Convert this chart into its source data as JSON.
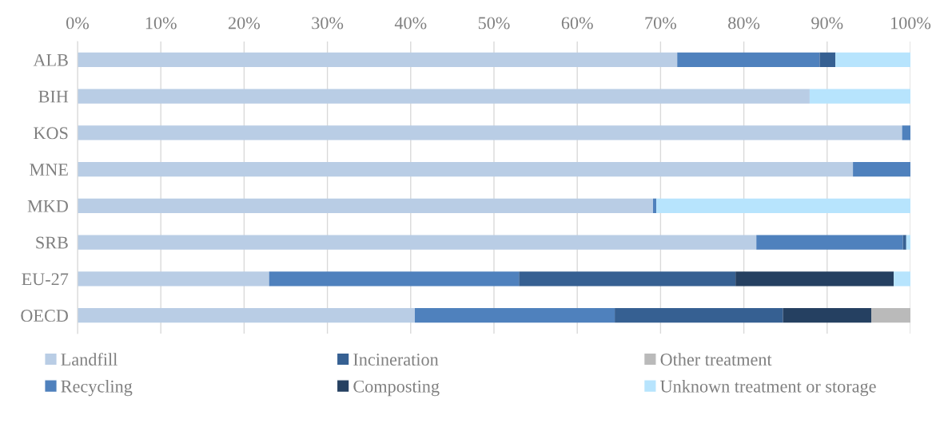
{
  "chart_data": {
    "type": "bar",
    "orientation": "horizontal",
    "stacked": true,
    "categories": [
      "ALB",
      "BIH",
      "KOS",
      "MNE",
      "MKD",
      "SRB",
      "EU-27",
      "OECD"
    ],
    "series": [
      {
        "name": "Landfill",
        "color": "#b9cde5",
        "values": [
          72.0,
          87.9,
          99.0,
          93.1,
          69.1,
          81.5,
          23.0,
          40.5
        ]
      },
      {
        "name": "Recycling",
        "color": "#4f81bd",
        "values": [
          17.1,
          null,
          1.0,
          6.9,
          0.4,
          17.6,
          30.0,
          24.0
        ]
      },
      {
        "name": "Incineration",
        "color": "#366092",
        "values": [
          1.9,
          null,
          null,
          null,
          null,
          0.4,
          26.0,
          20.2
        ]
      },
      {
        "name": "Composting",
        "color": "#254061",
        "values": [
          null,
          null,
          null,
          null,
          null,
          null,
          19.0,
          10.6
        ]
      },
      {
        "name": "Other treatment",
        "color": "#bababa",
        "values": [
          null,
          null,
          null,
          null,
          null,
          null,
          null,
          4.7
        ]
      },
      {
        "name": "Unknown treatment or storage",
        "color": "#b7e4fd",
        "values": [
          9.0,
          12.1,
          null,
          null,
          30.5,
          0.5,
          2.0,
          null
        ]
      }
    ],
    "xlim": [
      0,
      100
    ],
    "xticks": [
      {
        "value": 0,
        "label": "0%"
      },
      {
        "value": 10,
        "label": "10%"
      },
      {
        "value": 20,
        "label": "20%"
      },
      {
        "value": 30,
        "label": "30%"
      },
      {
        "value": 40,
        "label": "40%"
      },
      {
        "value": 50,
        "label": "50%"
      },
      {
        "value": 60,
        "label": "60%"
      },
      {
        "value": 70,
        "label": "70%"
      },
      {
        "value": 80,
        "label": "80%"
      },
      {
        "value": 90,
        "label": "90%"
      },
      {
        "value": 100,
        "label": "100%"
      }
    ],
    "grid": "x",
    "legend": "bottom"
  }
}
